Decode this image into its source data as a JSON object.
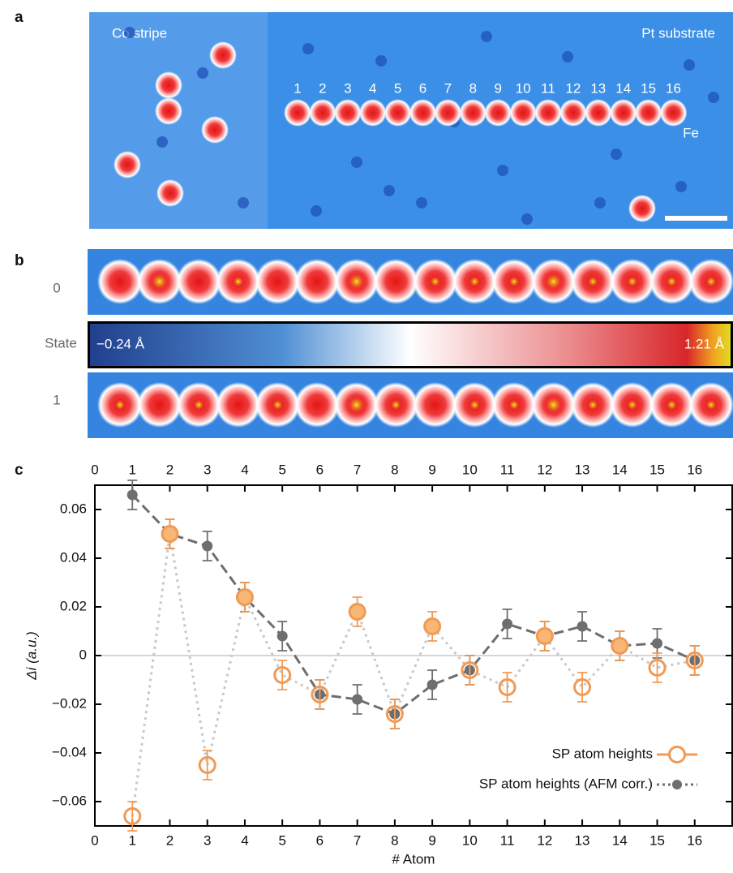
{
  "panel_a": {
    "label": "a",
    "left_note": "Co stripe",
    "right_note": "Pt substrate",
    "element": "Fe",
    "atom_labels": [
      "1",
      "2",
      "3",
      "4",
      "5",
      "6",
      "7",
      "8",
      "9",
      "10",
      "11",
      "12",
      "13",
      "14",
      "15",
      "16"
    ]
  },
  "panel_b": {
    "label": "b",
    "state_title": "State",
    "states": [
      "0",
      "1"
    ],
    "scale_min": "−0.24 Å",
    "scale_max": "1.21 Å"
  },
  "chart_data": {
    "type": "line",
    "label": "c",
    "xlabel": "# Atom",
    "ylabel": "Δi (a.u.)",
    "x": [
      1,
      2,
      3,
      4,
      5,
      6,
      7,
      8,
      9,
      10,
      11,
      12,
      13,
      14,
      15,
      16
    ],
    "xlim": [
      0,
      17
    ],
    "xticks": [
      0,
      1,
      2,
      3,
      4,
      5,
      6,
      7,
      8,
      9,
      10,
      11,
      12,
      13,
      14,
      15,
      16
    ],
    "ylim": [
      -0.07,
      0.07
    ],
    "yticks": [
      {
        "value": -0.06,
        "label": "−0.06"
      },
      {
        "value": -0.04,
        "label": "−0.04"
      },
      {
        "value": -0.02,
        "label": "−0.02"
      },
      0,
      0.02,
      0.04,
      0.06
    ],
    "series": [
      {
        "name": "SP atom heights",
        "color": "#f09a55",
        "line_color": "#c8c8c8",
        "line_style": "dotted",
        "marker": "open-circle",
        "values": [
          -0.066,
          0.05,
          -0.045,
          0.024,
          -0.008,
          -0.016,
          0.018,
          -0.024,
          0.012,
          -0.006,
          -0.013,
          0.008,
          -0.013,
          0.004,
          -0.005,
          -0.002
        ],
        "errors": [
          0.006,
          0.006,
          0.006,
          0.006,
          0.006,
          0.006,
          0.006,
          0.006,
          0.006,
          0.006,
          0.006,
          0.006,
          0.006,
          0.006,
          0.006,
          0.006
        ]
      },
      {
        "name": "SP atom heights (AFM corr.)",
        "color": "#6e6e6e",
        "line_color": "#6e6e6e",
        "line_style": "dashed",
        "marker": "dot",
        "values": [
          0.066,
          0.05,
          0.045,
          0.024,
          0.008,
          -0.016,
          -0.018,
          -0.024,
          -0.012,
          -0.006,
          0.013,
          0.008,
          0.012,
          0.004,
          0.005,
          -0.002
        ],
        "errors": [
          0.006,
          0.006,
          0.006,
          0.006,
          0.006,
          0.006,
          0.006,
          0.006,
          0.006,
          0.006,
          0.006,
          0.006,
          0.006,
          0.006,
          0.006,
          0.006
        ]
      }
    ],
    "zero_line": true,
    "legend": "lower-right"
  }
}
